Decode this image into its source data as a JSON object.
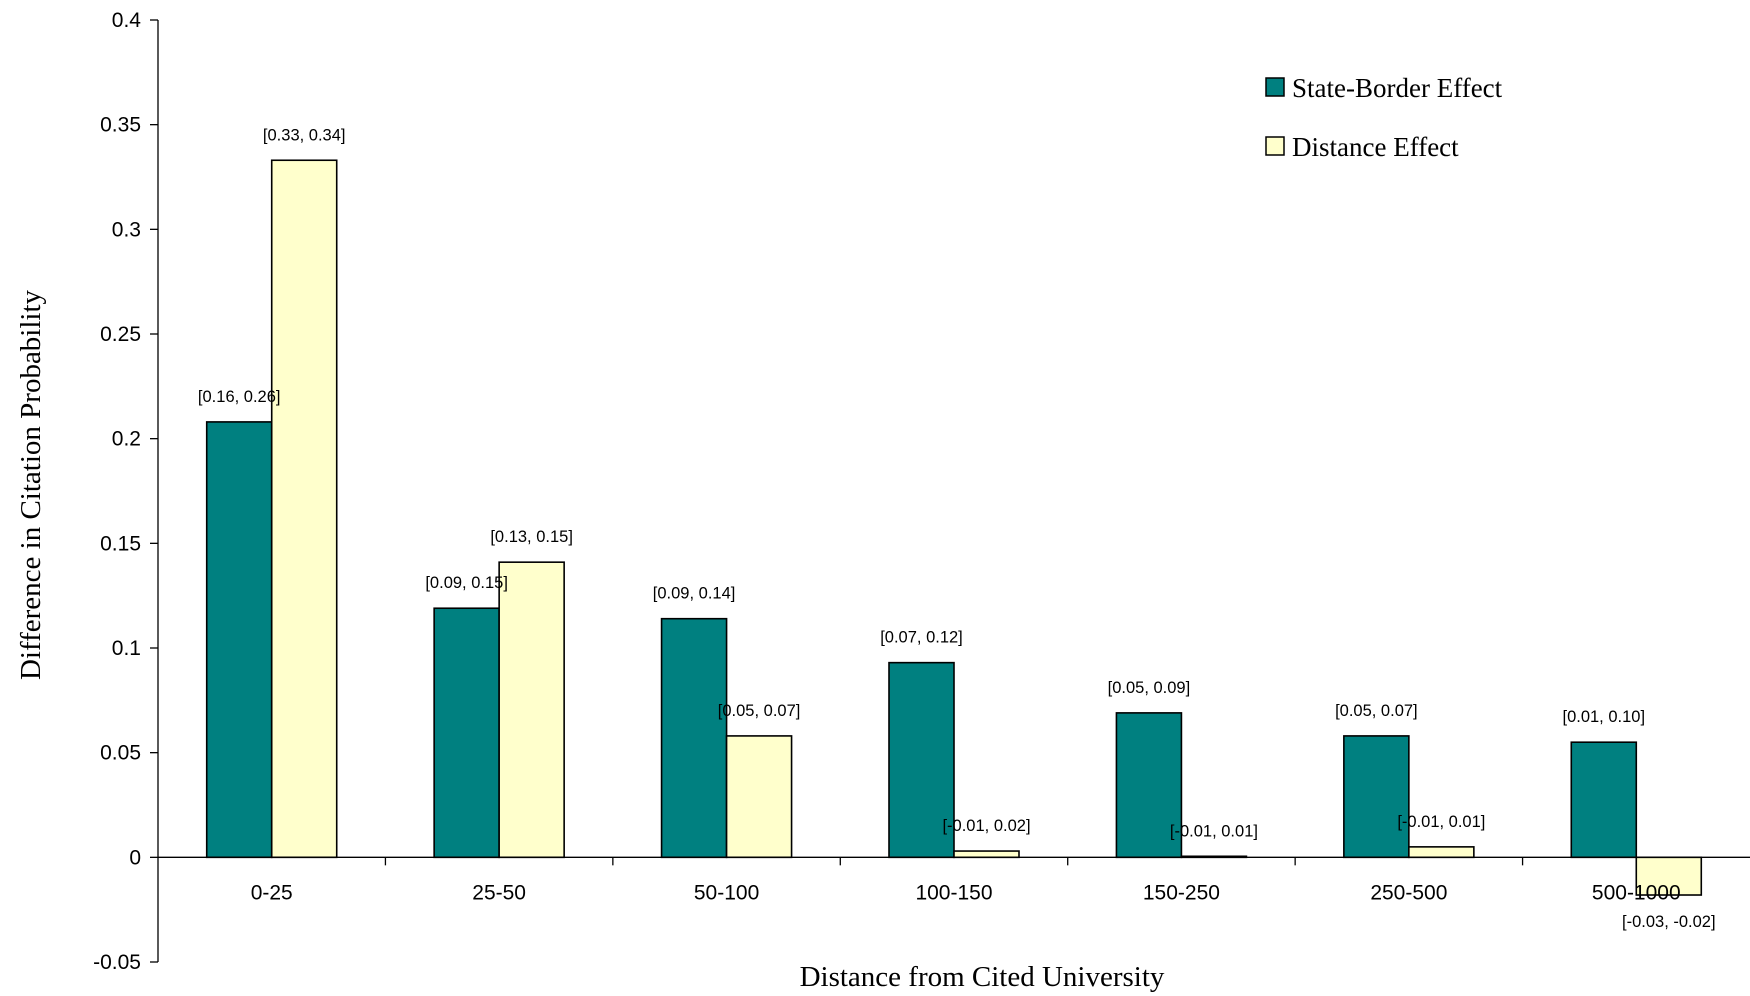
{
  "chart_data": {
    "type": "bar",
    "title": "",
    "xlabel": "Distance from Cited University",
    "ylabel": "Difference in Citation Probability",
    "ylim": [
      -0.05,
      0.4
    ],
    "yticks": [
      -0.05,
      0,
      0.05,
      0.1,
      0.15,
      0.2,
      0.25,
      0.3,
      0.35,
      0.4
    ],
    "ytick_labels": [
      "-0.05",
      "0",
      "0.05",
      "0.1",
      "0.15",
      "0.2",
      "0.25",
      "0.3",
      "0.35",
      "0.4"
    ],
    "categories": [
      "0-25",
      "25-50",
      "50-100",
      "100-150",
      "150-250",
      "250-500",
      "500-1000"
    ],
    "legend_position": "top-right",
    "grid": false,
    "series": [
      {
        "name": "State-Border Effect",
        "color": "#008080",
        "values": [
          0.208,
          0.119,
          0.114,
          0.093,
          0.069,
          0.058,
          0.055
        ],
        "ci_labels": [
          "[0.16, 0.26]",
          "[0.09, 0.15]",
          "[0.09, 0.14]",
          "[0.07, 0.12]",
          "[0.05, 0.09]",
          "[0.05, 0.07]",
          "[0.01, 0.10]"
        ]
      },
      {
        "name": "Distance Effect",
        "color": "#ffffcc",
        "values": [
          0.333,
          0.141,
          0.058,
          0.003,
          0.0005,
          0.005,
          -0.018
        ],
        "ci_labels": [
          "[0.33, 0.34]",
          "[0.13, 0.15]",
          "[0.05, 0.07]",
          "[-0.01, 0.02]",
          "[-0.01, 0.01]",
          "[-0.01, 0.01]",
          "[-0.03, -0.02]"
        ]
      }
    ]
  }
}
